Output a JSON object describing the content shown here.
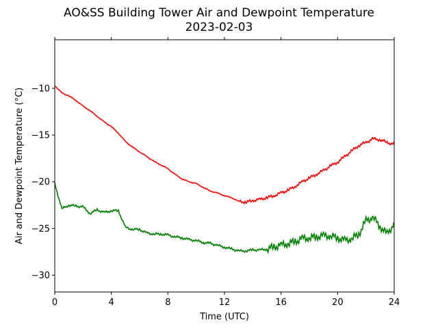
{
  "chart_data": {
    "type": "line",
    "title": "AO&SS Building Tower Air and Dewpoint Temperature",
    "subtitle": "2023-02-03",
    "xlabel": "Time (UTC)",
    "ylabel": "Air and Dewpoint Temperature (°C)",
    "xlim": [
      0,
      24
    ],
    "ylim": [
      -31.8,
      -4.8
    ],
    "xticks": [
      0,
      4,
      8,
      12,
      16,
      20,
      24
    ],
    "yticks": [
      -10,
      -15,
      -20,
      -25,
      -30
    ],
    "grid": false,
    "series": [
      {
        "color": "#ff0000",
        "x": [
          0,
          0.5,
          1,
          1.5,
          2,
          2.5,
          3,
          3.5,
          4,
          4.5,
          5,
          5.5,
          6,
          6.5,
          7,
          7.5,
          8,
          8.5,
          9,
          9.5,
          10,
          10.5,
          11,
          11.5,
          12,
          12.5,
          13,
          13.5,
          14,
          14.5,
          15,
          15.5,
          16,
          16.5,
          17,
          17.5,
          18,
          18.5,
          19,
          19.5,
          20,
          20.5,
          21,
          21.5,
          22,
          22.5,
          23,
          23.5,
          24
        ],
        "y": [
          -9.7,
          -10.5,
          -10.8,
          -11.3,
          -11.9,
          -12.4,
          -13.0,
          -13.6,
          -14.1,
          -14.8,
          -15.7,
          -16.3,
          -16.8,
          -17.3,
          -17.8,
          -18.2,
          -18.6,
          -19.2,
          -19.7,
          -20.0,
          -20.2,
          -20.6,
          -21.0,
          -21.2,
          -21.5,
          -21.7,
          -22.1,
          -22.2,
          -22.0,
          -21.9,
          -21.7,
          -21.5,
          -21.2,
          -20.9,
          -20.5,
          -20.0,
          -19.6,
          -19.2,
          -18.8,
          -18.3,
          -17.9,
          -17.3,
          -16.7,
          -16.1,
          -15.8,
          -15.4,
          -15.5,
          -15.8,
          -16.0
        ]
      },
      {
        "color": "#008000",
        "x": [
          0,
          0.5,
          1,
          1.5,
          2,
          2.5,
          3,
          3.5,
          4,
          4.5,
          5,
          5.5,
          6,
          6.5,
          7,
          7.5,
          8,
          8.5,
          9,
          9.5,
          10,
          10.5,
          11,
          11.5,
          12,
          12.5,
          13,
          13.5,
          14,
          14.5,
          15,
          15.5,
          16,
          16.5,
          17,
          17.5,
          18,
          18.5,
          19,
          19.5,
          20,
          20.5,
          21,
          21.5,
          22,
          22.5,
          23,
          23.5,
          24
        ],
        "y": [
          -20.2,
          -22.9,
          -22.5,
          -22.6,
          -22.7,
          -23.4,
          -23.0,
          -23.3,
          -23.1,
          -23.1,
          -24.9,
          -25.1,
          -25.1,
          -25.5,
          -25.6,
          -25.6,
          -25.7,
          -25.9,
          -26.0,
          -26.2,
          -26.3,
          -26.5,
          -26.6,
          -26.8,
          -27.0,
          -27.2,
          -27.4,
          -27.4,
          -27.3,
          -27.3,
          -27.2,
          -27.0,
          -26.8,
          -26.6,
          -26.4,
          -26.1,
          -26.0,
          -25.9,
          -25.8,
          -25.8,
          -26.0,
          -26.3,
          -26.1,
          -25.6,
          -24.2,
          -23.8,
          -24.8,
          -25.6,
          -24.5
        ]
      }
    ]
  }
}
